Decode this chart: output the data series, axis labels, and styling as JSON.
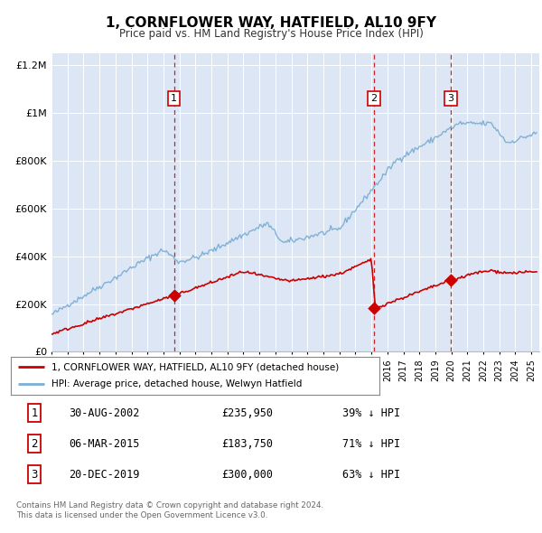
{
  "title": "1, CORNFLOWER WAY, HATFIELD, AL10 9FY",
  "subtitle": "Price paid vs. HM Land Registry's House Price Index (HPI)",
  "ylim": [
    0,
    1250000
  ],
  "xlim_start": 1995.0,
  "xlim_end": 2025.5,
  "background_color": "#ffffff",
  "plot_bg_color": "#dce6f5",
  "grid_color": "#ffffff",
  "red_line_color": "#cc0000",
  "blue_line_color": "#7bafd4",
  "dashed_line_color": "#cc0000",
  "sale_points": [
    {
      "year": 2002.66,
      "price": 235950,
      "label": "1"
    },
    {
      "year": 2015.17,
      "price": 183750,
      "label": "2"
    },
    {
      "year": 2019.97,
      "price": 300000,
      "label": "3"
    }
  ],
  "table_rows": [
    {
      "num": "1",
      "date": "30-AUG-2002",
      "price": "£235,950",
      "pct": "39% ↓ HPI"
    },
    {
      "num": "2",
      "date": "06-MAR-2015",
      "price": "£183,750",
      "pct": "71% ↓ HPI"
    },
    {
      "num": "3",
      "date": "20-DEC-2019",
      "price": "£300,000",
      "pct": "63% ↓ HPI"
    }
  ],
  "legend_red_label": "1, CORNFLOWER WAY, HATFIELD, AL10 9FY (detached house)",
  "legend_blue_label": "HPI: Average price, detached house, Welwyn Hatfield",
  "footer_line1": "Contains HM Land Registry data © Crown copyright and database right 2024.",
  "footer_line2": "This data is licensed under the Open Government Licence v3.0.",
  "ytick_labels": [
    "£0",
    "£200K",
    "£400K",
    "£600K",
    "£800K",
    "£1M",
    "£1.2M"
  ],
  "ytick_values": [
    0,
    200000,
    400000,
    600000,
    800000,
    1000000,
    1200000
  ]
}
